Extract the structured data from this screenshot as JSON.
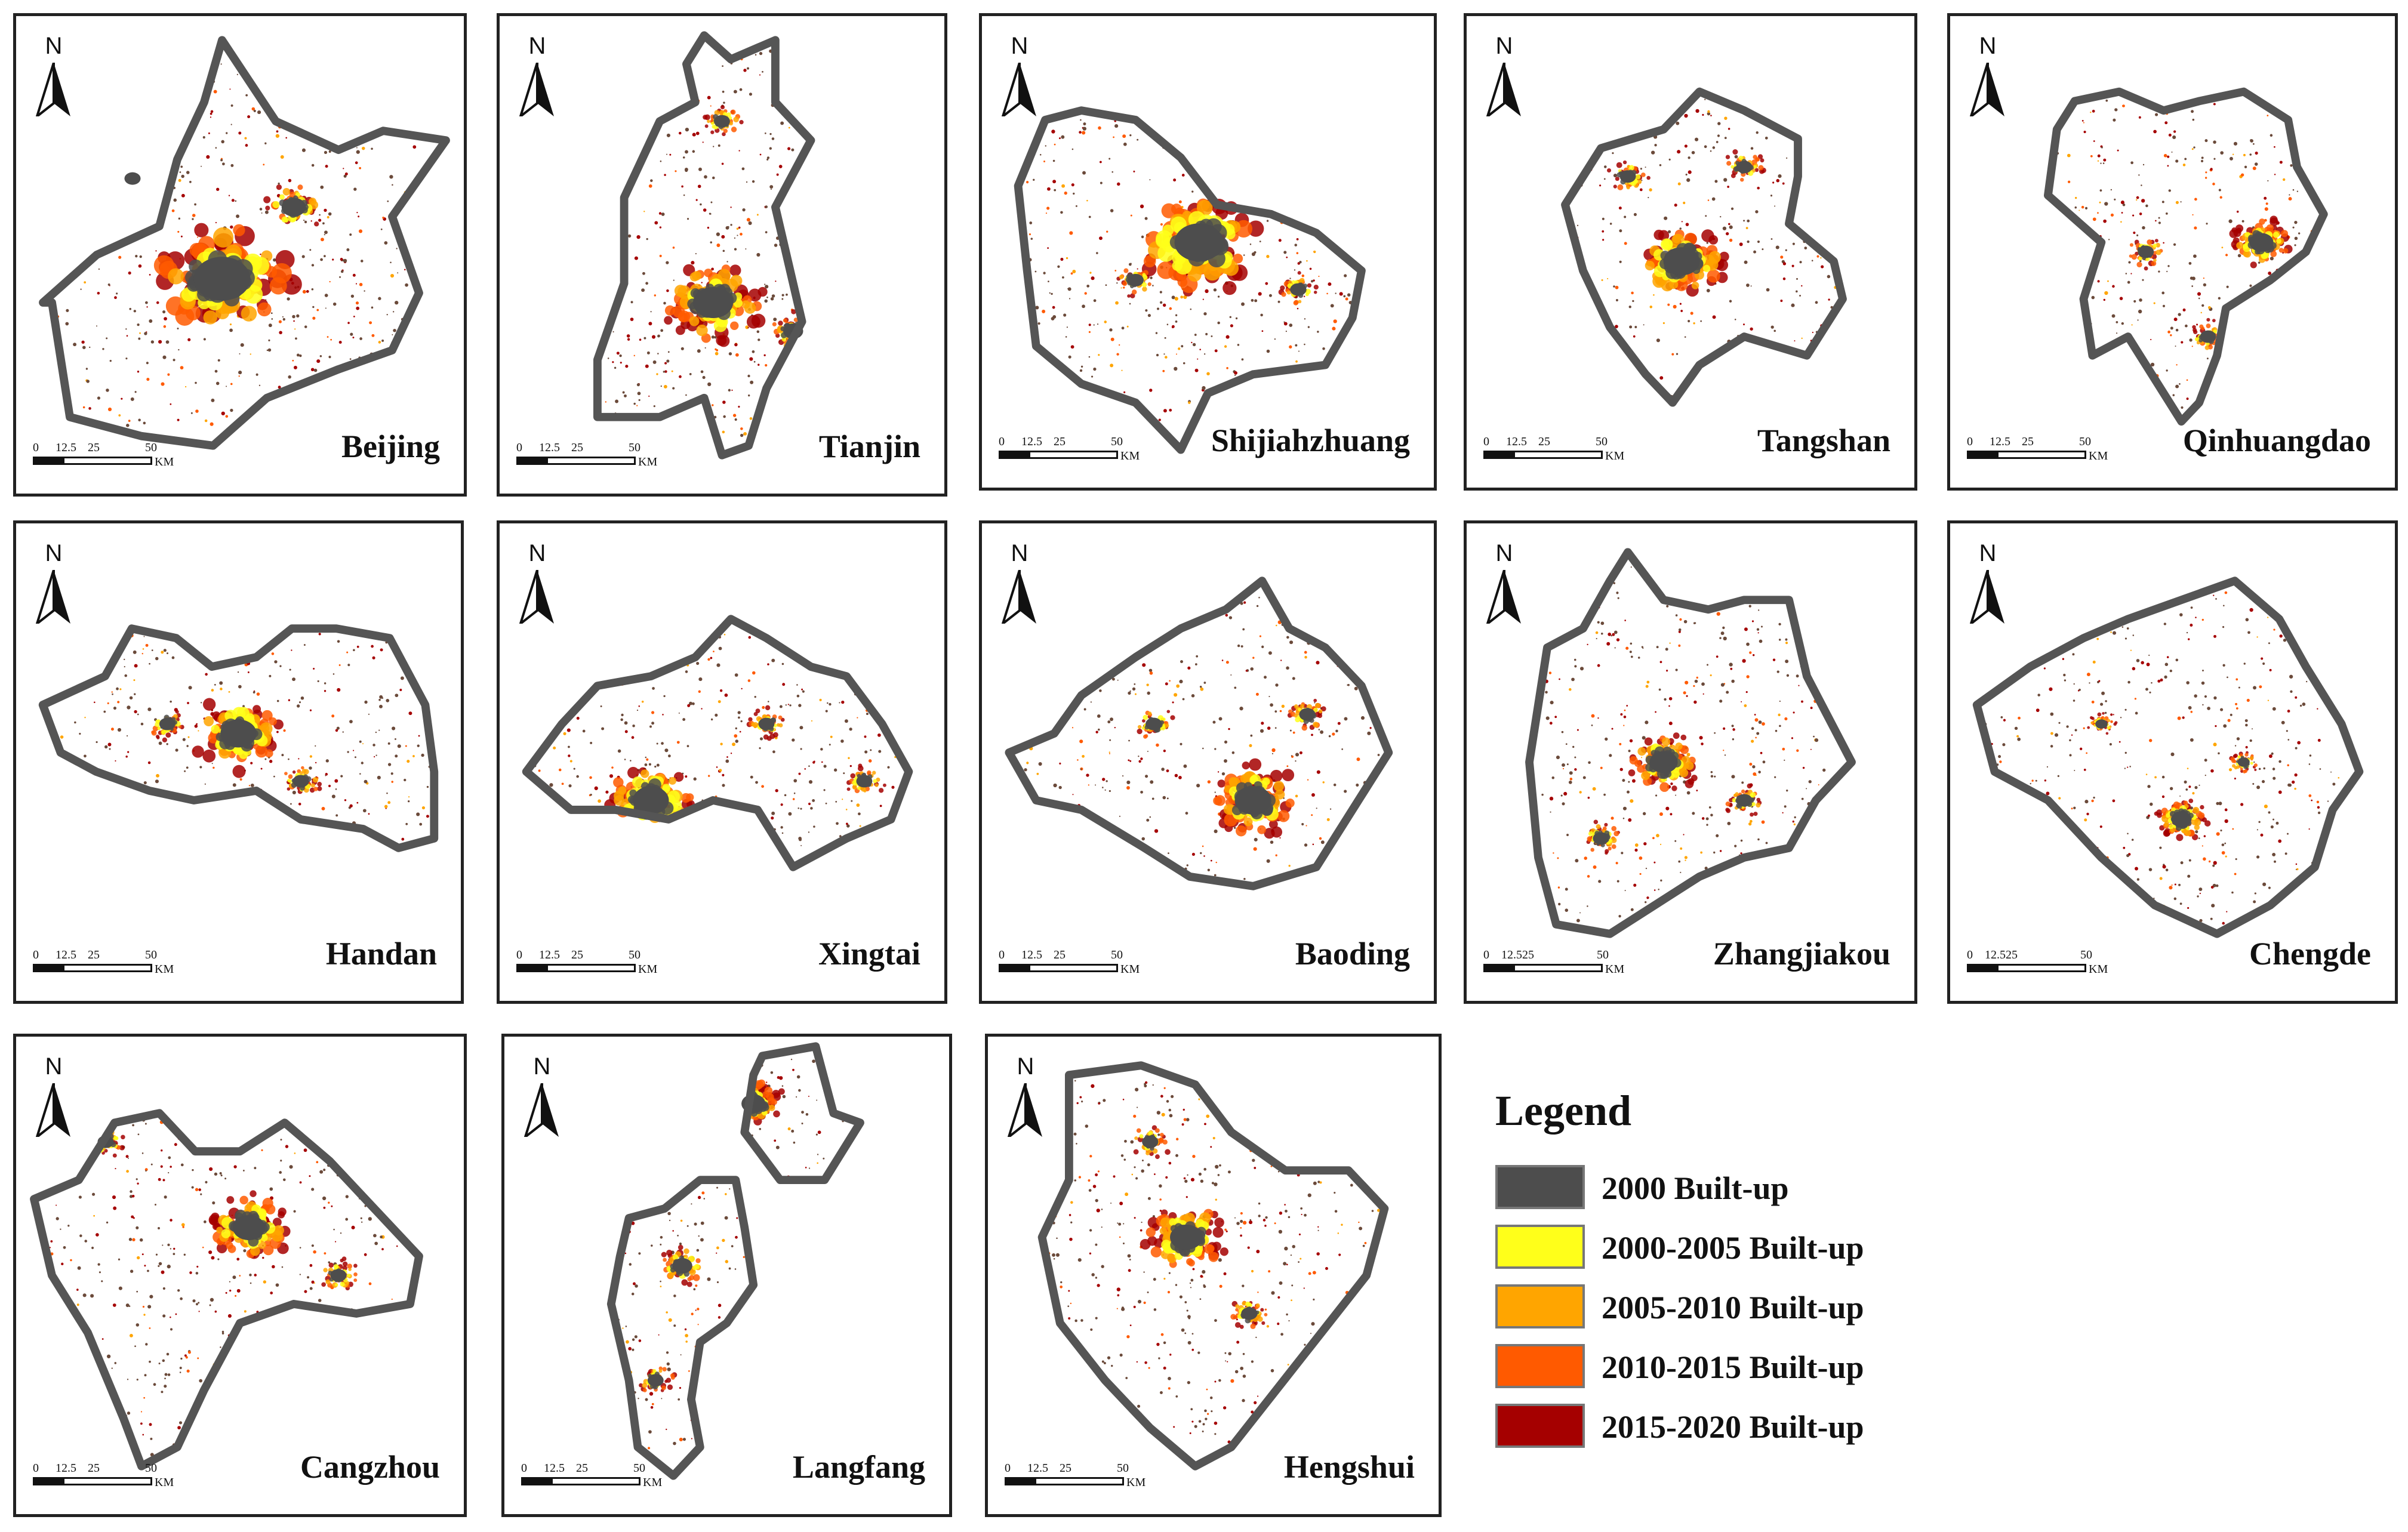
{
  "north_label": "N",
  "scale_bar": {
    "ticks_standard": [
      "0",
      "12.5",
      "25",
      "50"
    ],
    "ticks_compact": [
      "0",
      "12.525",
      "50"
    ],
    "unit": "KM"
  },
  "colors": {
    "built_2000": "#4d4d4d",
    "built_2000_2005": "#ffff1a",
    "built_2005_2010": "#ffa500",
    "built_2010_2015": "#ff5a00",
    "built_2015_2020": "#a50000",
    "boundary": "#555555"
  },
  "panels": [
    {
      "name": "Beijing",
      "scale": "standard"
    },
    {
      "name": "Tianjin",
      "scale": "standard"
    },
    {
      "name": "Shijiahzhuang",
      "scale": "standard"
    },
    {
      "name": "Tangshan",
      "scale": "standard"
    },
    {
      "name": "Qinhuangdao",
      "scale": "standard"
    },
    {
      "name": "Handan",
      "scale": "standard"
    },
    {
      "name": "Xingtai",
      "scale": "standard"
    },
    {
      "name": "Baoding",
      "scale": "standard"
    },
    {
      "name": "Zhangjiakou",
      "scale": "compact"
    },
    {
      "name": "Chengde",
      "scale": "compact"
    },
    {
      "name": "Cangzhou",
      "scale": "standard"
    },
    {
      "name": "Langfang",
      "scale": "standard"
    },
    {
      "name": "Hengshui",
      "scale": "standard"
    }
  ],
  "legend": {
    "title": "Legend",
    "items": [
      {
        "label": "2000 Built-up",
        "color": "#4d4d4d"
      },
      {
        "label": "2000-2005 Built-up",
        "color": "#ffff1a"
      },
      {
        "label": "2005-2010 Built-up",
        "color": "#ffa500"
      },
      {
        "label": "2010-2015 Built-up",
        "color": "#ff5a00"
      },
      {
        "label": "2015-2020 Built-up",
        "color": "#a50000"
      }
    ]
  }
}
